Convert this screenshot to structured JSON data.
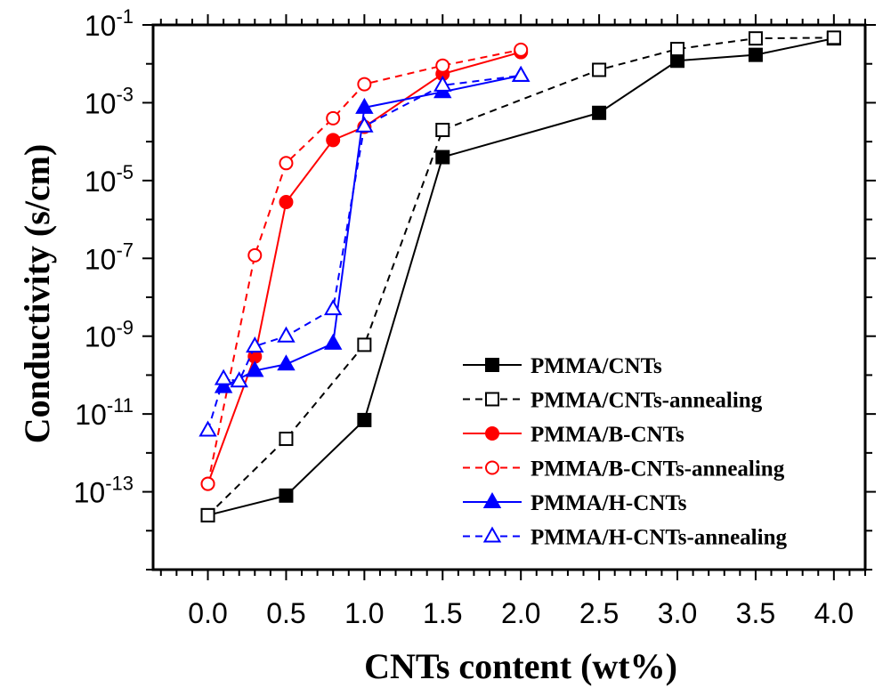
{
  "chart_data": {
    "type": "line",
    "xlabel": "CNTs content (wt%)",
    "ylabel": "Conductivity (s/cm)",
    "xlim": [
      -0.35,
      4.2
    ],
    "ylim": [
      1e-15,
      0.1
    ],
    "yscale": "log",
    "x_ticks": [
      "0.0",
      "0.5",
      "1.0",
      "1.5",
      "2.0",
      "2.5",
      "3.0",
      "3.5",
      "4.0"
    ],
    "y_ticks": [
      {
        "base": "10",
        "exp": "-1",
        "value": 0.1
      },
      {
        "base": "10",
        "exp": "-3",
        "value": 0.001
      },
      {
        "base": "10",
        "exp": "-5",
        "value": 1e-05
      },
      {
        "base": "10",
        "exp": "-7",
        "value": 1e-07
      },
      {
        "base": "10",
        "exp": "-9",
        "value": 1e-09
      },
      {
        "base": "10",
        "exp": "-11",
        "value": 1e-11
      },
      {
        "base": "10",
        "exp": "-13",
        "value": 1e-13
      }
    ],
    "legend_position": "lower-right",
    "grid": false,
    "series": [
      {
        "name": "PMMA/CNTs",
        "color": "#000000",
        "dash": "solid",
        "marker": "square",
        "filled": true,
        "x": [
          0.0,
          0.5,
          1.0,
          1.5,
          2.5,
          3.0,
          3.5,
          4.0
        ],
        "y": [
          2.5e-14,
          8e-14,
          7e-12,
          4e-05,
          0.00055,
          0.012,
          0.017,
          0.045
        ]
      },
      {
        "name": "PMMA/CNTs-annealing",
        "color": "#000000",
        "dash": "dashed",
        "marker": "square",
        "filled": false,
        "x": [
          0.0,
          0.5,
          1.0,
          1.5,
          2.5,
          3.0,
          3.5,
          4.0
        ],
        "y": [
          2.5e-14,
          2.3e-12,
          6e-10,
          0.0002,
          0.007,
          0.024,
          0.045,
          0.047
        ]
      },
      {
        "name": "PMMA/B-CNTs",
        "color": "#ff0000",
        "dash": "solid",
        "marker": "circle",
        "filled": true,
        "x": [
          0.0,
          0.3,
          0.5,
          0.8,
          1.0,
          1.5,
          2.0
        ],
        "y": [
          1.6e-13,
          3e-10,
          2.8e-06,
          0.00011,
          0.00024,
          0.0055,
          0.02
        ]
      },
      {
        "name": "PMMA/B-CNTs-annealing",
        "color": "#ff0000",
        "dash": "dashed",
        "marker": "circle",
        "filled": false,
        "x": [
          0.0,
          0.3,
          0.5,
          0.8,
          1.0,
          1.5,
          2.0
        ],
        "y": [
          1.6e-13,
          1.2e-07,
          2.8e-05,
          0.0004,
          0.003,
          0.009,
          0.023
        ]
      },
      {
        "name": "PMMA/H-CNTs",
        "color": "#0000ff",
        "dash": "solid",
        "marker": "triangle",
        "filled": true,
        "x": [
          0.1,
          0.3,
          0.5,
          0.8,
          1.0,
          1.5,
          2.0
        ],
        "y": [
          5e-11,
          1.3e-10,
          1.9e-10,
          6.5e-10,
          0.00075,
          0.0019,
          0.005
        ]
      },
      {
        "name": "PMMA/H-CNTs-annealing",
        "color": "#0000ff",
        "dash": "dashed",
        "marker": "triangle",
        "filled": false,
        "x": [
          0.0,
          0.1,
          0.2,
          0.3,
          0.5,
          0.8,
          1.0,
          1.5,
          2.0
        ],
        "y": [
          3.8e-12,
          8e-11,
          7e-11,
          5.5e-10,
          1e-09,
          5e-09,
          0.00025,
          0.0028,
          0.005
        ]
      }
    ]
  }
}
